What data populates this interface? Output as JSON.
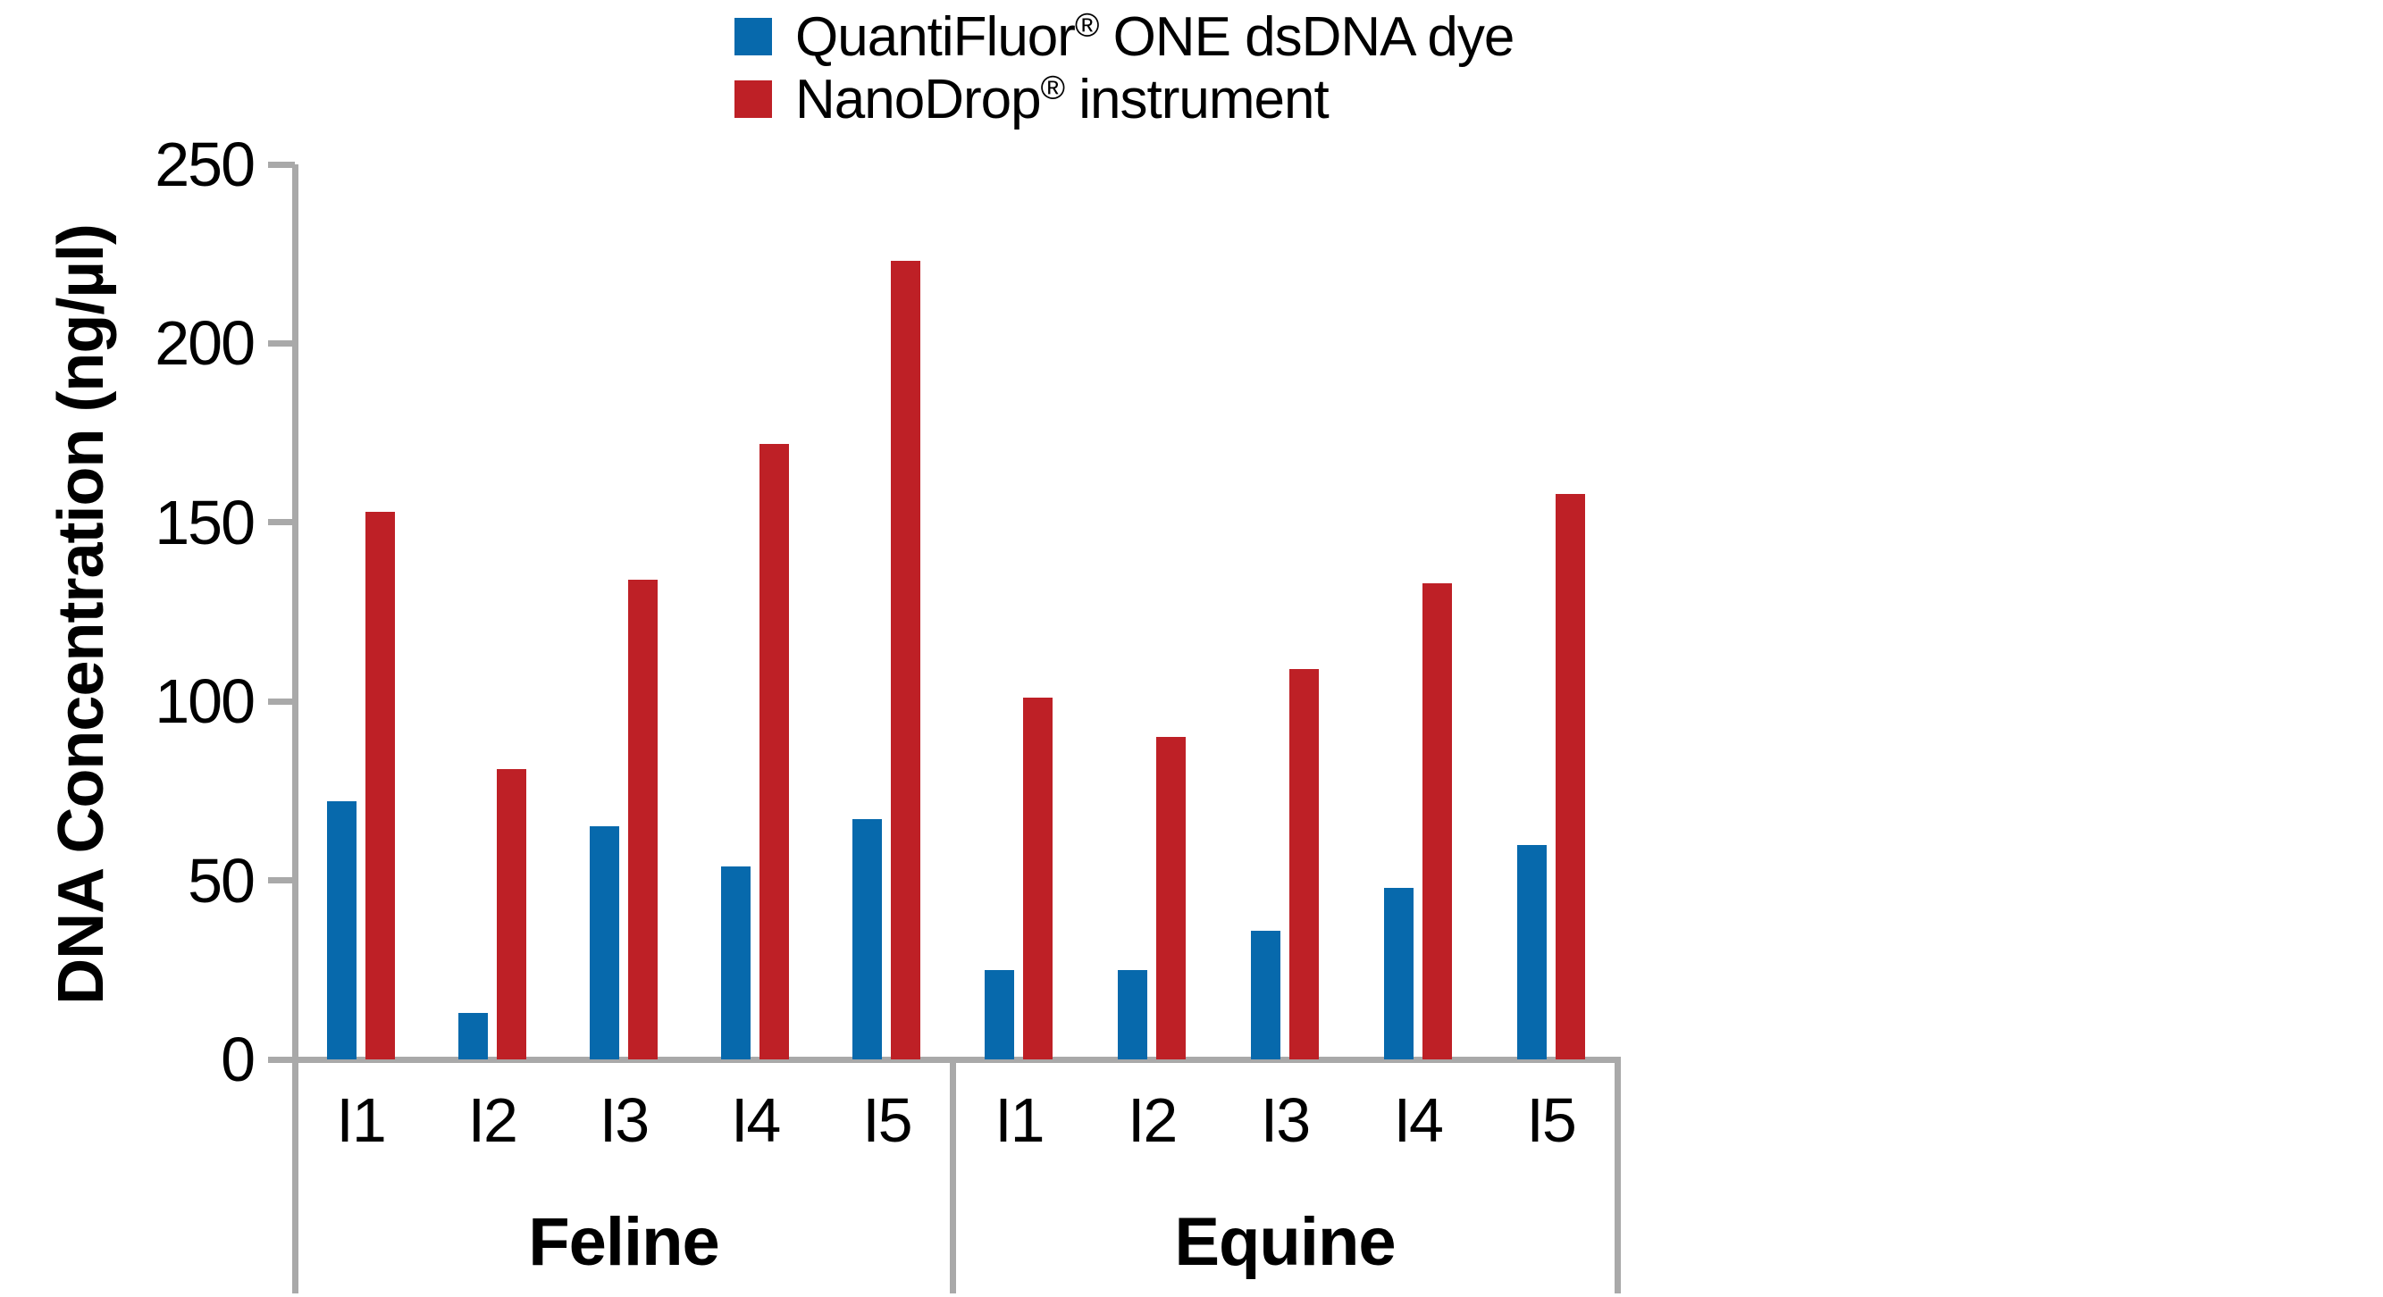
{
  "legend": {
    "items": [
      {
        "label": "QuantiFluor® ONE dsDNA dye",
        "color": "#0769AC"
      },
      {
        "label": "NanoDrop® instrument",
        "color": "#BE2026"
      }
    ]
  },
  "y_axis": {
    "title": "DNA Concentration (ng/µl)"
  },
  "colors": {
    "blue": "#0769AC",
    "red": "#BE2026",
    "axis_gray": "#a9a9a9",
    "text": "#000000",
    "background": "#ffffff"
  },
  "chart_data": {
    "type": "bar",
    "title": "",
    "xlabel": "",
    "ylabel": "DNA Concentration (ng/µl)",
    "ylim": [
      0,
      250
    ],
    "yticks": [
      0,
      50,
      100,
      150,
      200,
      250
    ],
    "grid": false,
    "legend_position": "top",
    "groups": [
      "Feline",
      "Equine"
    ],
    "categories": [
      "I1",
      "I2",
      "I3",
      "I4",
      "I5"
    ],
    "series": [
      {
        "name": "QuantiFluor® ONE dsDNA dye",
        "color": "#0769AC",
        "values": {
          "Feline": [
            72,
            13,
            65,
            54,
            67
          ],
          "Equine": [
            25,
            25,
            36,
            48,
            60
          ]
        }
      },
      {
        "name": "NanoDrop® instrument",
        "color": "#BE2026",
        "values": {
          "Feline": [
            153,
            81,
            134,
            172,
            223
          ],
          "Equine": [
            101,
            90,
            109,
            133,
            158
          ]
        }
      }
    ]
  }
}
